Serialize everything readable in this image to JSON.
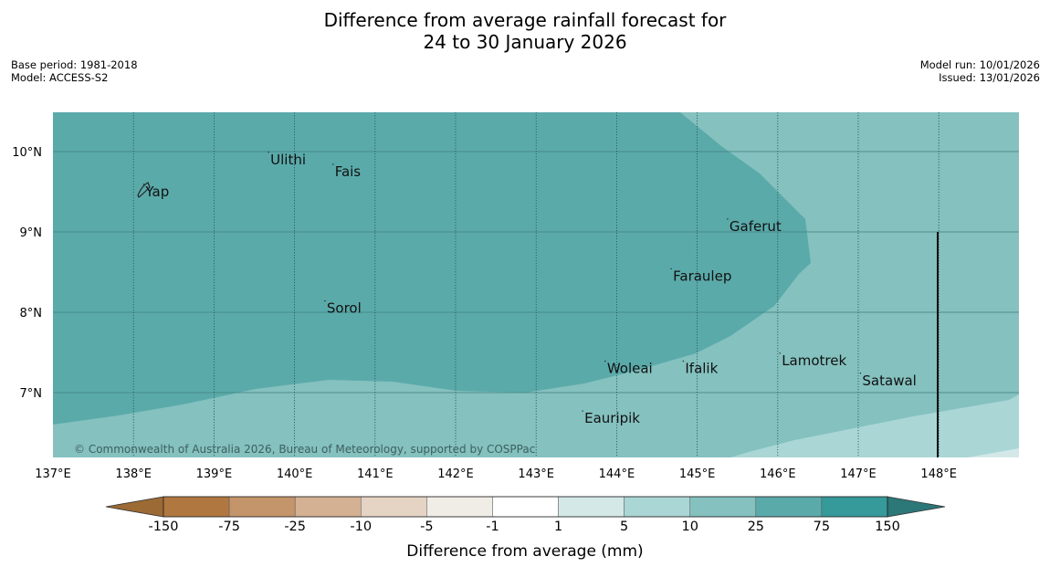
{
  "header": {
    "title_line1": "Difference from average rainfall forecast for",
    "title_line2": "24 to 30 January 2026"
  },
  "meta": {
    "base_period": "Base period: 1981-2018",
    "model": "Model: ACCESS-S2",
    "model_run": "Model run: 10/01/2026",
    "issued": "Issued: 13/01/2026"
  },
  "map": {
    "lon_range": [
      137,
      149
    ],
    "lat_range": [
      6.2,
      10.5
    ],
    "x_ticks": [
      "137°E",
      "138°E",
      "139°E",
      "140°E",
      "141°E",
      "142°E",
      "143°E",
      "144°E",
      "145°E",
      "146°E",
      "147°E",
      "148°E"
    ],
    "y_ticks": [
      "10°N",
      "9°N",
      "8°N",
      "7°N"
    ],
    "places": [
      {
        "name": "Ulithi",
        "lon": 139.7,
        "lat": 9.9
      },
      {
        "name": "Yap",
        "lon": 138.15,
        "lat": 9.5
      },
      {
        "name": "Fais",
        "lon": 140.5,
        "lat": 9.75
      },
      {
        "name": "Gaferut",
        "lon": 145.4,
        "lat": 9.07
      },
      {
        "name": "Faraulep",
        "lon": 144.7,
        "lat": 8.45
      },
      {
        "name": "Sorol",
        "lon": 140.4,
        "lat": 8.05
      },
      {
        "name": "Lamotrek",
        "lon": 146.05,
        "lat": 7.4
      },
      {
        "name": "Woleai",
        "lon": 143.88,
        "lat": 7.3
      },
      {
        "name": "Ifalik",
        "lon": 144.85,
        "lat": 7.3
      },
      {
        "name": "Satawal",
        "lon": 147.05,
        "lat": 7.15
      },
      {
        "name": "Eauripik",
        "lon": 143.6,
        "lat": 6.68
      }
    ],
    "attribution": "© Commonwealth of Australia 2026, Bureau of Meteorology, supported by COSPPac"
  },
  "colorbar": {
    "title": "Difference from average (mm)",
    "labels": [
      "-150",
      "-75",
      "-25",
      "-10",
      "-5",
      "-1",
      "1",
      "5",
      "10",
      "25",
      "75",
      "150"
    ],
    "colors": [
      "#9c6a34",
      "#b07840",
      "#c4946a",
      "#d4b192",
      "#e5d3c4",
      "#f0ece6",
      "#ffffff",
      "#d4e8e8",
      "#aad6d6",
      "#84c1bf",
      "#5baaaa",
      "#36999a",
      "#2c7778"
    ]
  },
  "colors": {
    "band_10_25": "#84c1bf",
    "band_25_75": "#5baaaa",
    "band_5_10": "#aad6d6"
  }
}
